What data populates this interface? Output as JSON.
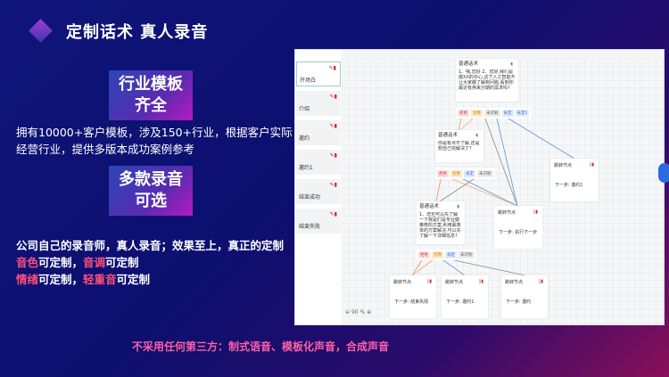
{
  "header": {
    "title": "定制话术  真人录音"
  },
  "badges": [
    {
      "line1": "行业模板",
      "line2": "齐全"
    },
    {
      "line1": "多款录音",
      "line2": "可选"
    }
  ],
  "desc1": [
    "拥有10000+客户模板，涉及150+行业，根据客户实际",
    "经营行业，提供多版本成功案例参考"
  ],
  "desc2": {
    "line1": "公司自己的录音师，真人录音；效果至上，真正的定制",
    "line2": [
      {
        "hl": "音色"
      },
      {
        "t": "可定制，"
      },
      {
        "hl": "音调"
      },
      {
        "t": "可定制"
      }
    ],
    "line3": [
      {
        "hl": "情绪"
      },
      {
        "t": "可定制，"
      },
      {
        "hl": "轻重音"
      },
      {
        "t": "可定制"
      }
    ]
  },
  "footer": "不采用任何第三方：制式语音、模板化声音，合成声音",
  "app": {
    "sidebar": [
      "开场白",
      "介绍",
      "邀约",
      "邀约1",
      "结束成功",
      "结束失败"
    ],
    "nodes": [
      {
        "title": "普通话术",
        "text": "1、喂,您好 2、您好,我们是做XX的中心,这下人工智能不让大家都了解到问题,看到你最近有用来分期的需求吗?",
        "tags": [
          "拒绝",
          "犹豫",
          "未识别",
          "肯定",
          "肯定1"
        ]
      },
      {
        "title": "普通话术",
        "text": "你是有点不了解,还是想自己完解决了?",
        "tags": [
          "拒绝",
          "犹豫",
          "肯定",
          "未识别"
        ]
      },
      {
        "title": "普通话术",
        "text": "1、您也可以先了解一下我是们是专业做推荐的方案,利用最简单的方案解决,可以先了解一下详细信息?",
        "tags": [
          "拒绝",
          "犹豫",
          "肯定",
          "未识别"
        ]
      }
    ],
    "jumps": [
      {
        "title": "跳转节点",
        "next": "下一步: 邀约1"
      },
      {
        "title": "跳转节点",
        "next": "下一步: 执行下一步"
      },
      {
        "title": "跳转节点",
        "next": "下一步: 结束失败"
      },
      {
        "title": "跳转节点",
        "next": "下一步: 邀约1"
      },
      {
        "title": "跳转节点",
        "next": "下一步: 邀约"
      }
    ],
    "zoom": "90 %"
  }
}
